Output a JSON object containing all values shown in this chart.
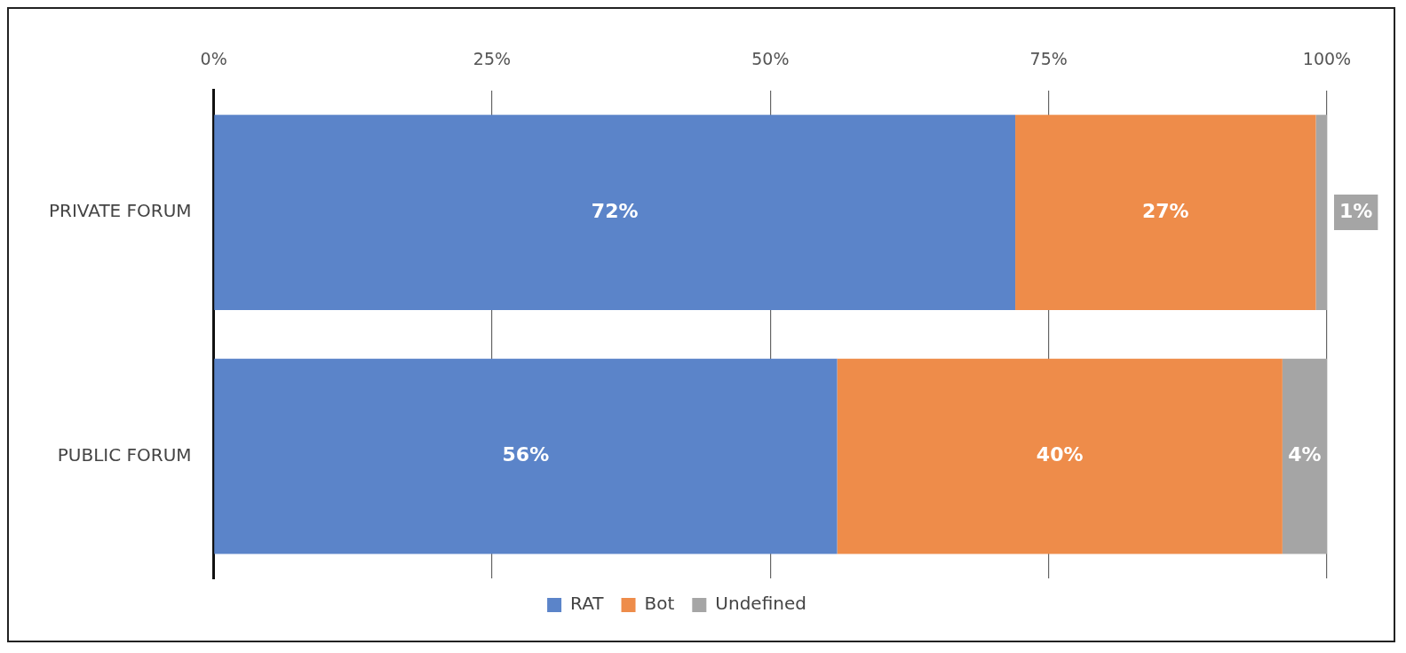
{
  "chart_data": {
    "type": "bar",
    "orientation": "horizontal",
    "stacked": true,
    "categories": [
      "PRIVATE FORUM",
      "PUBLIC FORUM"
    ],
    "series": [
      {
        "name": "RAT",
        "color": "#5b84c9",
        "values": [
          72,
          56
        ],
        "value_labels": [
          "72%",
          "56%"
        ]
      },
      {
        "name": "Bot",
        "color": "#ee8c4a",
        "values": [
          27,
          40
        ],
        "value_labels": [
          "27%",
          "40%"
        ]
      },
      {
        "name": "Undefined",
        "color": "#a5a5a5",
        "values": [
          1,
          4
        ],
        "value_labels": [
          "1%",
          "4%"
        ]
      }
    ],
    "xlim": [
      0,
      100
    ],
    "xticks": [
      {
        "value": 0,
        "label": "0%"
      },
      {
        "value": 25,
        "label": "25%"
      },
      {
        "value": 50,
        "label": "50%"
      },
      {
        "value": 75,
        "label": "75%"
      },
      {
        "value": 100,
        "label": "100%"
      }
    ],
    "grid": "x",
    "legend": "bottom"
  }
}
